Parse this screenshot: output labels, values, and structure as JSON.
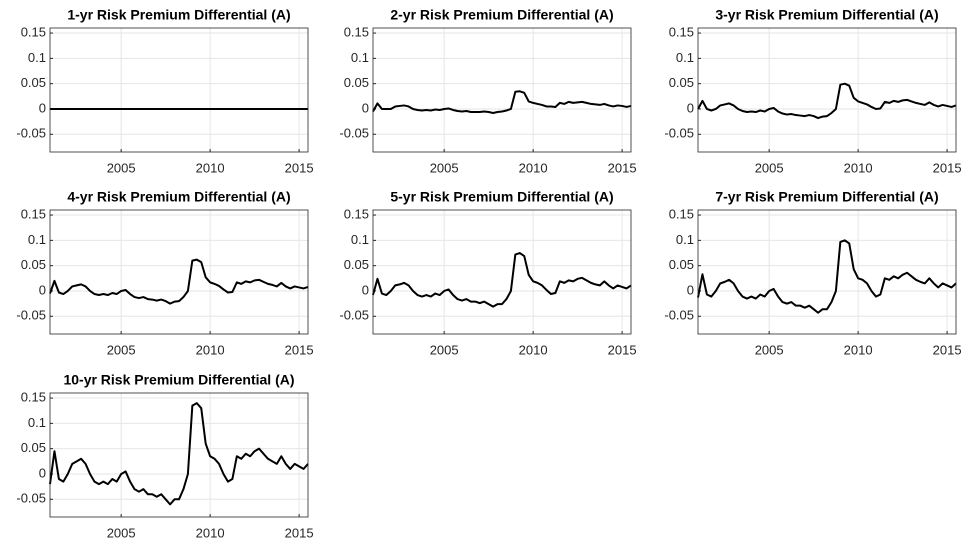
{
  "chart_data": [
    {
      "type": "line",
      "title": "1-yr  Risk Premium Differential (A)",
      "x": [
        2001,
        2015.5
      ],
      "values": [
        0,
        0
      ],
      "color": "#000000",
      "xlim": [
        2001,
        2015.5
      ],
      "xticks": [
        2005,
        2010,
        2015
      ],
      "ylim": [
        -0.085,
        0.16
      ],
      "yticks": [
        -0.05,
        0,
        0.05,
        0.1,
        0.15
      ],
      "grid": true
    },
    {
      "type": "line",
      "title": "2-yr  Risk Premium Differential (A)",
      "x": [
        2001,
        2001.25,
        2001.5,
        2001.75,
        2002,
        2002.25,
        2002.5,
        2002.75,
        2003,
        2003.25,
        2003.5,
        2003.75,
        2004,
        2004.25,
        2004.5,
        2004.75,
        2005,
        2005.25,
        2005.5,
        2005.75,
        2006,
        2006.25,
        2006.5,
        2006.75,
        2007,
        2007.25,
        2007.5,
        2007.75,
        2008,
        2008.25,
        2008.5,
        2008.75,
        2009,
        2009.25,
        2009.5,
        2009.75,
        2010,
        2010.25,
        2010.5,
        2010.75,
        2011,
        2011.25,
        2011.5,
        2011.75,
        2012,
        2012.25,
        2012.5,
        2012.75,
        2013,
        2013.25,
        2013.5,
        2013.75,
        2014,
        2014.25,
        2014.5,
        2014.75,
        2015,
        2015.25,
        2015.5
      ],
      "values": [
        -0.005,
        0.011,
        0.0,
        0.0,
        0.0,
        0.005,
        0.006,
        0.007,
        0.005,
        0.0,
        -0.002,
        -0.003,
        -0.002,
        -0.003,
        -0.001,
        -0.002,
        0.0,
        0.001,
        -0.002,
        -0.004,
        -0.005,
        -0.004,
        -0.006,
        -0.006,
        -0.006,
        -0.005,
        -0.006,
        -0.008,
        -0.006,
        -0.005,
        -0.003,
        0.0,
        0.034,
        0.035,
        0.032,
        0.015,
        0.012,
        0.01,
        0.008,
        0.005,
        0.005,
        0.004,
        0.012,
        0.01,
        0.014,
        0.012,
        0.013,
        0.014,
        0.012,
        0.01,
        0.009,
        0.008,
        0.01,
        0.007,
        0.005,
        0.007,
        0.006,
        0.004,
        0.006
      ],
      "color": "#000000",
      "xlim": [
        2001,
        2015.5
      ],
      "xticks": [
        2005,
        2010,
        2015
      ],
      "ylim": [
        -0.085,
        0.16
      ],
      "yticks": [
        -0.05,
        0,
        0.05,
        0.1,
        0.15
      ],
      "grid": true
    },
    {
      "type": "line",
      "title": "3-yr  Risk Premium Differential (A)",
      "x": [
        2001,
        2001.25,
        2001.5,
        2001.75,
        2002,
        2002.25,
        2002.5,
        2002.75,
        2003,
        2003.25,
        2003.5,
        2003.75,
        2004,
        2004.25,
        2004.5,
        2004.75,
        2005,
        2005.25,
        2005.5,
        2005.75,
        2006,
        2006.25,
        2006.5,
        2006.75,
        2007,
        2007.25,
        2007.5,
        2007.75,
        2008,
        2008.25,
        2008.5,
        2008.75,
        2009,
        2009.25,
        2009.5,
        2009.75,
        2010,
        2010.25,
        2010.5,
        2010.75,
        2011,
        2011.25,
        2011.5,
        2011.75,
        2012,
        2012.25,
        2012.5,
        2012.75,
        2013,
        2013.25,
        2013.5,
        2013.75,
        2014,
        2014.25,
        2014.5,
        2014.75,
        2015,
        2015.25,
        2015.5
      ],
      "values": [
        0.0,
        0.016,
        0.0,
        -0.003,
        0.0,
        0.007,
        0.009,
        0.011,
        0.007,
        0.0,
        -0.004,
        -0.006,
        -0.005,
        -0.006,
        -0.003,
        -0.005,
        0.0,
        0.002,
        -0.005,
        -0.009,
        -0.011,
        -0.01,
        -0.012,
        -0.013,
        -0.014,
        -0.012,
        -0.014,
        -0.018,
        -0.015,
        -0.014,
        -0.008,
        0.0,
        0.048,
        0.05,
        0.046,
        0.022,
        0.015,
        0.012,
        0.009,
        0.004,
        0.0,
        0.001,
        0.014,
        0.012,
        0.016,
        0.014,
        0.017,
        0.018,
        0.015,
        0.012,
        0.01,
        0.008,
        0.013,
        0.008,
        0.005,
        0.008,
        0.006,
        0.004,
        0.007
      ],
      "color": "#000000",
      "xlim": [
        2001,
        2015.5
      ],
      "xticks": [
        2005,
        2010,
        2015
      ],
      "ylim": [
        -0.085,
        0.16
      ],
      "yticks": [
        -0.05,
        0,
        0.05,
        0.1,
        0.15
      ],
      "grid": true
    },
    {
      "type": "line",
      "title": "4-yr  Risk Premium Differential (A)",
      "x": [
        2001,
        2001.25,
        2001.5,
        2001.75,
        2002,
        2002.25,
        2002.5,
        2002.75,
        2003,
        2003.25,
        2003.5,
        2003.75,
        2004,
        2004.25,
        2004.5,
        2004.75,
        2005,
        2005.25,
        2005.5,
        2005.75,
        2006,
        2006.25,
        2006.5,
        2006.75,
        2007,
        2007.25,
        2007.5,
        2007.75,
        2008,
        2008.25,
        2008.5,
        2008.75,
        2009,
        2009.25,
        2009.5,
        2009.75,
        2010,
        2010.25,
        2010.5,
        2010.75,
        2011,
        2011.25,
        2011.5,
        2011.75,
        2012,
        2012.25,
        2012.5,
        2012.75,
        2013,
        2013.25,
        2013.5,
        2013.75,
        2014,
        2014.25,
        2014.5,
        2014.75,
        2015,
        2015.25,
        2015.5
      ],
      "values": [
        -0.005,
        0.02,
        -0.003,
        -0.006,
        0.0,
        0.009,
        0.011,
        0.013,
        0.009,
        0.0,
        -0.006,
        -0.008,
        -0.006,
        -0.008,
        -0.004,
        -0.006,
        0.0,
        0.002,
        -0.006,
        -0.012,
        -0.014,
        -0.012,
        -0.016,
        -0.017,
        -0.019,
        -0.017,
        -0.02,
        -0.025,
        -0.021,
        -0.02,
        -0.012,
        0.0,
        0.06,
        0.062,
        0.057,
        0.027,
        0.017,
        0.014,
        0.01,
        0.003,
        -0.003,
        -0.002,
        0.017,
        0.014,
        0.019,
        0.017,
        0.021,
        0.022,
        0.018,
        0.014,
        0.012,
        0.009,
        0.016,
        0.009,
        0.005,
        0.009,
        0.007,
        0.005,
        0.008
      ],
      "color": "#000000",
      "xlim": [
        2001,
        2015.5
      ],
      "xticks": [
        2005,
        2010,
        2015
      ],
      "ylim": [
        -0.085,
        0.16
      ],
      "yticks": [
        -0.05,
        0,
        0.05,
        0.1,
        0.15
      ],
      "grid": true
    },
    {
      "type": "line",
      "title": "5-yr  Risk Premium Differential (A)",
      "x": [
        2001,
        2001.25,
        2001.5,
        2001.75,
        2002,
        2002.25,
        2002.5,
        2002.75,
        2003,
        2003.25,
        2003.5,
        2003.75,
        2004,
        2004.25,
        2004.5,
        2004.75,
        2005,
        2005.25,
        2005.5,
        2005.75,
        2006,
        2006.25,
        2006.5,
        2006.75,
        2007,
        2007.25,
        2007.5,
        2007.75,
        2008,
        2008.25,
        2008.5,
        2008.75,
        2009,
        2009.25,
        2009.5,
        2009.75,
        2010,
        2010.25,
        2010.5,
        2010.75,
        2011,
        2011.25,
        2011.5,
        2011.75,
        2012,
        2012.25,
        2012.5,
        2012.75,
        2013,
        2013.25,
        2013.5,
        2013.75,
        2014,
        2014.25,
        2014.5,
        2014.75,
        2015,
        2015.25,
        2015.5
      ],
      "values": [
        -0.008,
        0.024,
        -0.005,
        -0.008,
        0.0,
        0.011,
        0.013,
        0.016,
        0.011,
        0.0,
        -0.008,
        -0.011,
        -0.008,
        -0.011,
        -0.005,
        -0.008,
        0.0,
        0.003,
        -0.008,
        -0.016,
        -0.019,
        -0.016,
        -0.021,
        -0.021,
        -0.024,
        -0.021,
        -0.026,
        -0.031,
        -0.026,
        -0.026,
        -0.016,
        0.0,
        0.072,
        0.075,
        0.069,
        0.032,
        0.019,
        0.016,
        0.011,
        0.002,
        -0.006,
        -0.004,
        0.019,
        0.016,
        0.021,
        0.019,
        0.024,
        0.026,
        0.021,
        0.016,
        0.013,
        0.011,
        0.019,
        0.011,
        0.005,
        0.011,
        0.008,
        0.005,
        0.011
      ],
      "color": "#000000",
      "xlim": [
        2001,
        2015.5
      ],
      "xticks": [
        2005,
        2010,
        2015
      ],
      "ylim": [
        -0.085,
        0.16
      ],
      "yticks": [
        -0.05,
        0,
        0.05,
        0.1,
        0.15
      ],
      "grid": true
    },
    {
      "type": "line",
      "title": "7-yr  Risk Premium Differential (A)",
      "x": [
        2001,
        2001.25,
        2001.5,
        2001.75,
        2002,
        2002.25,
        2002.5,
        2002.75,
        2003,
        2003.25,
        2003.5,
        2003.75,
        2004,
        2004.25,
        2004.5,
        2004.75,
        2005,
        2005.25,
        2005.5,
        2005.75,
        2006,
        2006.25,
        2006.5,
        2006.75,
        2007,
        2007.25,
        2007.5,
        2007.75,
        2008,
        2008.25,
        2008.5,
        2008.75,
        2009,
        2009.25,
        2009.5,
        2009.75,
        2010,
        2010.25,
        2010.5,
        2010.75,
        2011,
        2011.25,
        2011.5,
        2011.75,
        2012,
        2012.25,
        2012.5,
        2012.75,
        2013,
        2013.25,
        2013.5,
        2013.75,
        2014,
        2014.25,
        2014.5,
        2014.75,
        2015,
        2015.25,
        2015.5
      ],
      "values": [
        -0.013,
        0.033,
        -0.007,
        -0.011,
        0.0,
        0.015,
        0.018,
        0.022,
        0.015,
        0.0,
        -0.011,
        -0.015,
        -0.011,
        -0.015,
        -0.007,
        -0.011,
        0.0,
        0.004,
        -0.011,
        -0.022,
        -0.025,
        -0.022,
        -0.029,
        -0.029,
        -0.033,
        -0.029,
        -0.036,
        -0.043,
        -0.036,
        -0.036,
        -0.022,
        0.0,
        0.097,
        0.1,
        0.094,
        0.043,
        0.025,
        0.022,
        0.015,
        0.0,
        -0.011,
        -0.007,
        0.025,
        0.022,
        0.029,
        0.025,
        0.032,
        0.036,
        0.029,
        0.022,
        0.018,
        0.015,
        0.025,
        0.015,
        0.007,
        0.015,
        0.011,
        0.007,
        0.015
      ],
      "color": "#000000",
      "xlim": [
        2001,
        2015.5
      ],
      "xticks": [
        2005,
        2010,
        2015
      ],
      "ylim": [
        -0.085,
        0.16
      ],
      "yticks": [
        -0.05,
        0,
        0.05,
        0.1,
        0.15
      ],
      "grid": true
    },
    {
      "type": "line",
      "title": "10-yr  Risk Premium Differential (A)",
      "x": [
        2001,
        2001.25,
        2001.5,
        2001.75,
        2002,
        2002.25,
        2002.5,
        2002.75,
        2003,
        2003.25,
        2003.5,
        2003.75,
        2004,
        2004.25,
        2004.5,
        2004.75,
        2005,
        2005.25,
        2005.5,
        2005.75,
        2006,
        2006.25,
        2006.5,
        2006.75,
        2007,
        2007.25,
        2007.5,
        2007.75,
        2008,
        2008.25,
        2008.5,
        2008.75,
        2009,
        2009.25,
        2009.5,
        2009.75,
        2010,
        2010.25,
        2010.5,
        2010.75,
        2011,
        2011.25,
        2011.5,
        2011.75,
        2012,
        2012.25,
        2012.5,
        2012.75,
        2013,
        2013.25,
        2013.5,
        2013.75,
        2014,
        2014.25,
        2014.5,
        2014.75,
        2015,
        2015.25,
        2015.5
      ],
      "values": [
        -0.02,
        0.045,
        -0.01,
        -0.015,
        0.0,
        0.02,
        0.025,
        0.03,
        0.02,
        0.0,
        -0.015,
        -0.02,
        -0.015,
        -0.02,
        -0.01,
        -0.015,
        0.0,
        0.005,
        -0.015,
        -0.03,
        -0.035,
        -0.03,
        -0.04,
        -0.04,
        -0.045,
        -0.04,
        -0.05,
        -0.06,
        -0.05,
        -0.05,
        -0.03,
        0.0,
        0.135,
        0.14,
        0.13,
        0.06,
        0.035,
        0.03,
        0.02,
        0.0,
        -0.015,
        -0.01,
        0.035,
        0.03,
        0.04,
        0.035,
        0.045,
        0.05,
        0.04,
        0.03,
        0.025,
        0.02,
        0.035,
        0.02,
        0.01,
        0.02,
        0.015,
        0.01,
        0.02
      ],
      "color": "#000000",
      "xlim": [
        2001,
        2015.5
      ],
      "xticks": [
        2005,
        2010,
        2015
      ],
      "ylim": [
        -0.085,
        0.16
      ],
      "yticks": [
        -0.05,
        0,
        0.05,
        0.1,
        0.15
      ],
      "grid": true
    }
  ]
}
